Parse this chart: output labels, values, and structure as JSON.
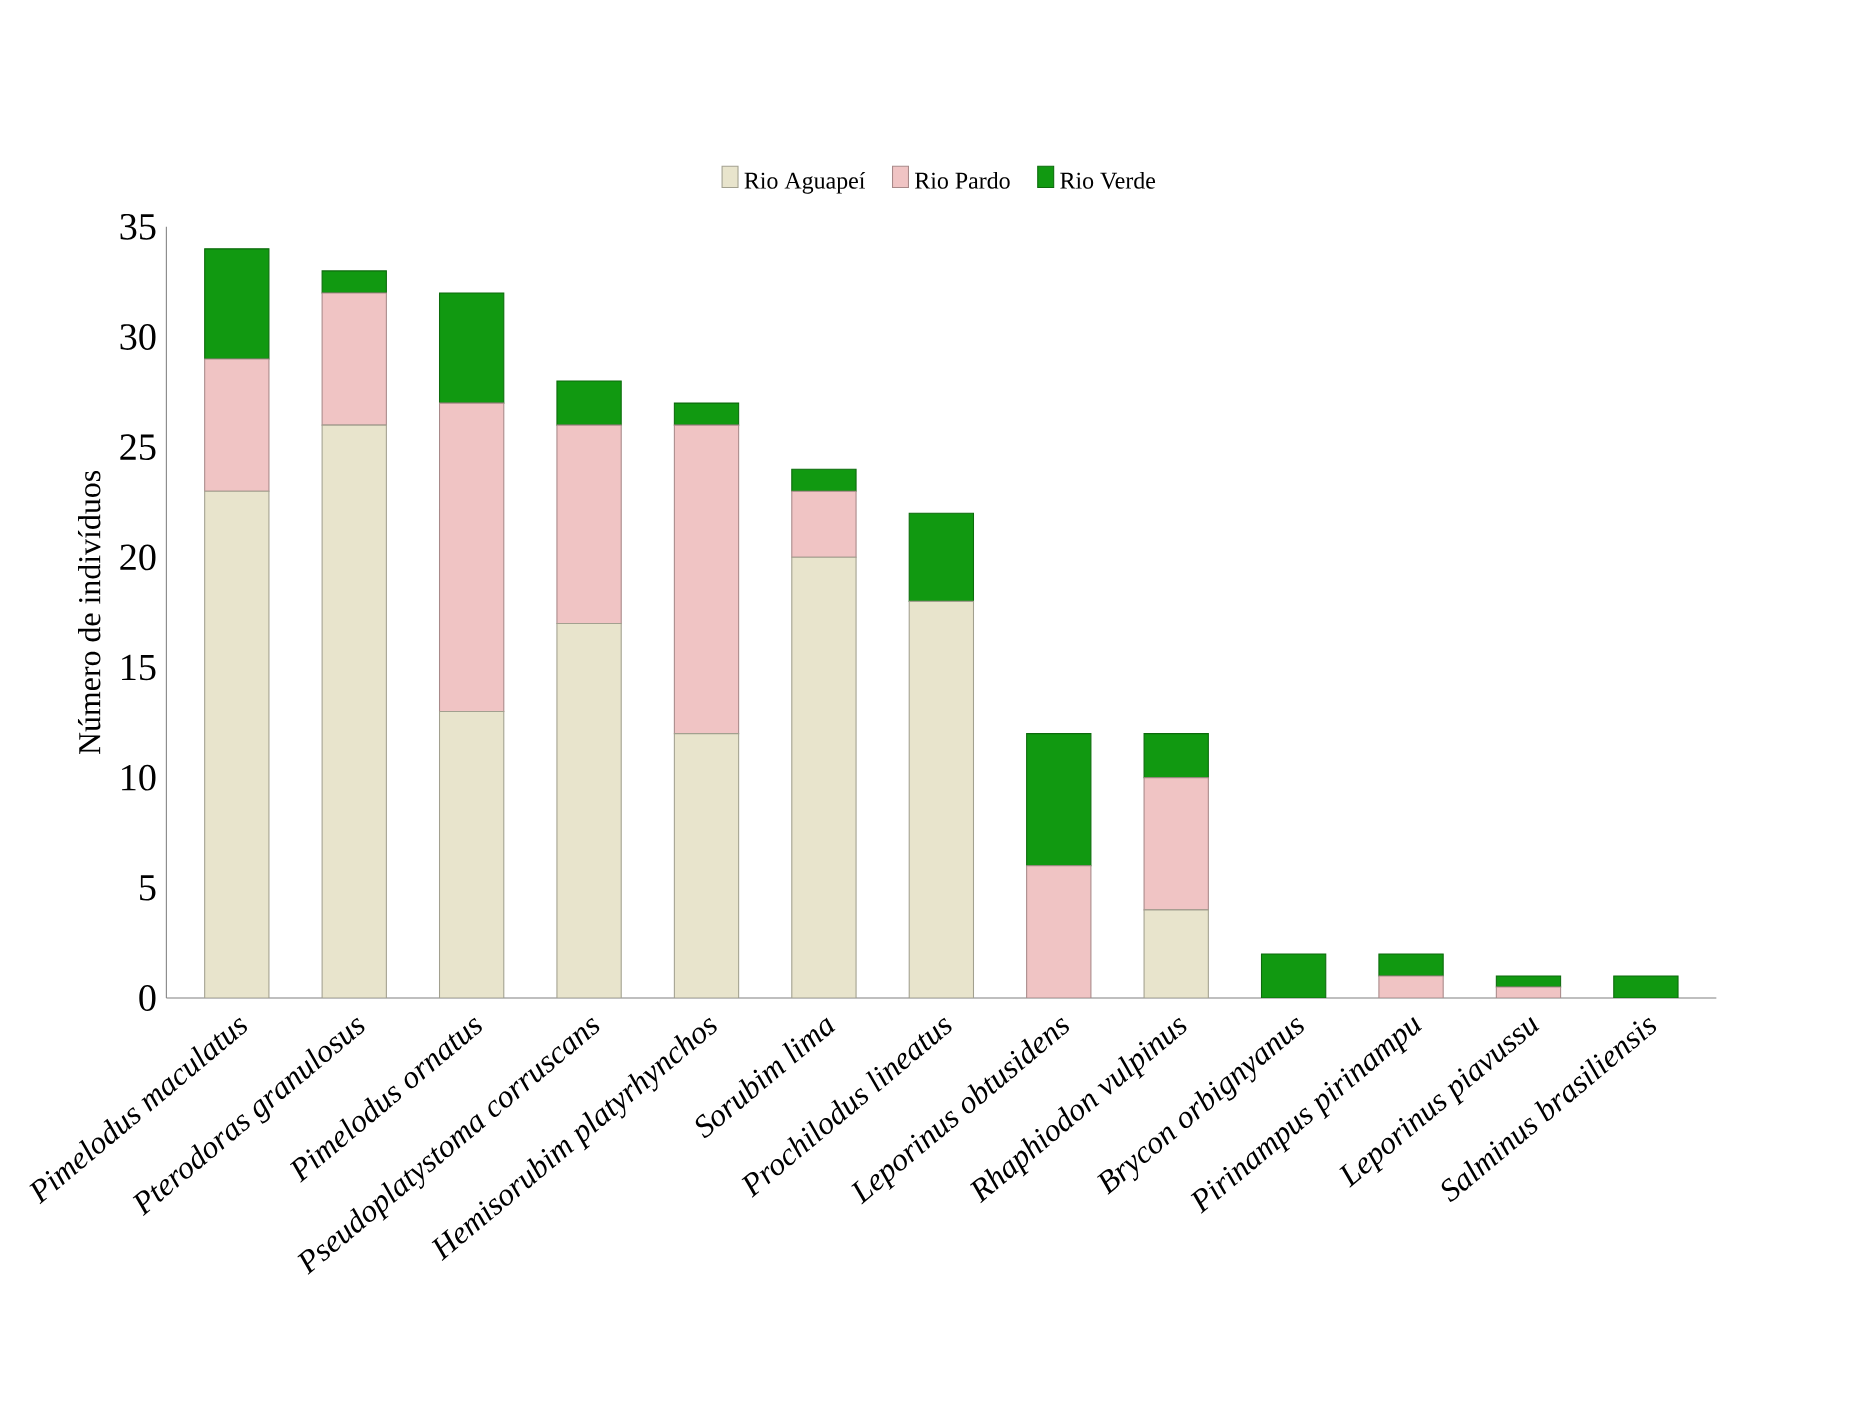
{
  "chart_data": {
    "type": "bar",
    "stacked": true,
    "ylabel": "Número de indivíduos",
    "categories": [
      "*Pimelodus maculatus*",
      "*Pterodoras granulosus*",
      "*Pimelodus ornatus*",
      "*Pseudoplatystoma corruscans*",
      "*Hemisorubim platyrhynchos*",
      "*Sorubim lima*",
      "*Prochilodus lineatus*",
      "*Leporinus obtusidens*",
      "*Rhaphiodon vulpinus*",
      "*Brycon orbignyanus*",
      "*Pirinampus pirinampu*",
      "*Leporinus piavussu*",
      "*Salminus brasiliensis*"
    ],
    "series": [
      {
        "name": "Rio Aguapeí",
        "color": "#e8e4cc",
        "values": [
          23,
          26,
          13,
          17,
          12,
          20,
          18,
          0,
          4,
          0,
          0,
          0,
          0
        ]
      },
      {
        "name": "Rio Pardo",
        "color": "#f0c4c4",
        "values": [
          6,
          6,
          14,
          9,
          14,
          3,
          0,
          6,
          6,
          0,
          1,
          0.5,
          0
        ]
      },
      {
        "name": "Rio Verde",
        "color": "#119911",
        "values": [
          5,
          1,
          5,
          2,
          1,
          1,
          4,
          6,
          2,
          2,
          1,
          0.5,
          1
        ]
      }
    ],
    "ylim": [
      0,
      35
    ],
    "yticks": [
      0,
      5,
      10,
      15,
      20,
      25,
      30,
      35
    ],
    "grid": false,
    "legend": "top"
  }
}
